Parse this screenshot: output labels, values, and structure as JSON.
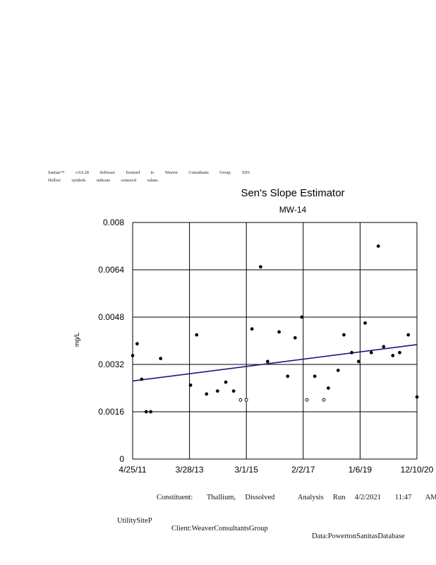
{
  "header": {
    "line1": "Sanitas™ v.9.6.28 Software licensed to Weaver Consultants Group. EPA",
    "line2": "Hollow symbols indicate censored values."
  },
  "footer": {
    "constituent": "Constituent:   Thallium,  Dissolved     Analysis  Run  4/2/2021   11:47   AM",
    "site": "UtilitySiteP",
    "client": "Client:WeaverConsultantsGroup",
    "data": "Data:PowertonSanitasDatabase"
  },
  "chart_data": {
    "type": "scatter",
    "title": "Sen's Slope Estimator",
    "subtitle": "MW-14",
    "ylabel": "mg/L",
    "xlabel": "",
    "x_ticks": [
      "4/25/11",
      "3/28/13",
      "3/1/15",
      "2/2/17",
      "1/6/19",
      "12/10/20"
    ],
    "xlim": [
      "2011-04-25",
      "2020-12-10"
    ],
    "y_ticks": [
      "0",
      "0.0016",
      "0.0032",
      "0.0048",
      "0.0064",
      "0.008"
    ],
    "ylim": [
      0,
      0.008
    ],
    "grid": true,
    "colors": {
      "trend": "#1a1a7a",
      "points": "#000000",
      "grid": "#000000"
    },
    "trend_line": {
      "x": [
        "2011-04-25",
        "2020-12-10"
      ],
      "y": [
        0.00264,
        0.00387
      ]
    },
    "series": [
      {
        "marker": "filled",
        "points": [
          {
            "x": "2011-04-25",
            "y": 0.0035
          },
          {
            "x": "2011-06-20",
            "y": 0.0039
          },
          {
            "x": "2011-08-15",
            "y": 0.0027
          },
          {
            "x": "2011-10-10",
            "y": 0.0016
          },
          {
            "x": "2011-12-05",
            "y": 0.0016
          },
          {
            "x": "2012-04-05",
            "y": 0.0034
          },
          {
            "x": "2013-04-10",
            "y": 0.0025
          },
          {
            "x": "2013-06-25",
            "y": 0.0042
          },
          {
            "x": "2013-10-25",
            "y": 0.0022
          },
          {
            "x": "2014-03-10",
            "y": 0.0023
          },
          {
            "x": "2014-06-20",
            "y": 0.0026
          },
          {
            "x": "2014-09-25",
            "y": 0.0023
          },
          {
            "x": "2015-05-10",
            "y": 0.0044
          },
          {
            "x": "2015-08-25",
            "y": 0.0065
          },
          {
            "x": "2015-11-20",
            "y": 0.0033
          },
          {
            "x": "2016-04-10",
            "y": 0.0043
          },
          {
            "x": "2016-07-25",
            "y": 0.0028
          },
          {
            "x": "2016-10-25",
            "y": 0.0041
          },
          {
            "x": "2017-01-15",
            "y": 0.0048
          },
          {
            "x": "2017-06-25",
            "y": 0.0028
          },
          {
            "x": "2017-12-10",
            "y": 0.0024
          },
          {
            "x": "2018-04-10",
            "y": 0.003
          },
          {
            "x": "2018-06-20",
            "y": 0.0042
          },
          {
            "x": "2018-09-25",
            "y": 0.0036
          },
          {
            "x": "2018-12-20",
            "y": 0.0033
          },
          {
            "x": "2019-03-10",
            "y": 0.0046
          },
          {
            "x": "2019-05-25",
            "y": 0.0036
          },
          {
            "x": "2019-08-20",
            "y": 0.0072
          },
          {
            "x": "2019-10-25",
            "y": 0.0038
          },
          {
            "x": "2020-02-15",
            "y": 0.0035
          },
          {
            "x": "2020-05-10",
            "y": 0.0036
          },
          {
            "x": "2020-08-25",
            "y": 0.0042
          },
          {
            "x": "2020-12-10",
            "y": 0.0021
          }
        ]
      },
      {
        "marker": "hollow",
        "points": [
          {
            "x": "2014-12-20",
            "y": 0.002
          },
          {
            "x": "2015-03-01",
            "y": 0.002
          },
          {
            "x": "2017-03-20",
            "y": 0.002
          },
          {
            "x": "2017-10-15",
            "y": 0.002
          }
        ]
      }
    ]
  }
}
